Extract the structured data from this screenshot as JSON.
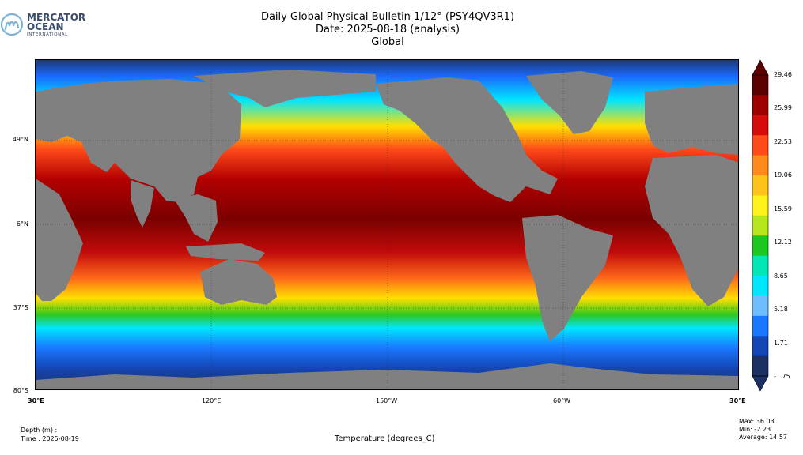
{
  "logo": {
    "line1": "MERCATOR",
    "line2": "OCEAN",
    "line3": "INTERNATIONAL",
    "icon": "mercator-ocean-logo-icon"
  },
  "title": {
    "line1": "Daily Global Physical Bulletin 1/12° (PSY4QV3R1)",
    "line2": "Date: 2025-08-18 (analysis)",
    "line3": "Global"
  },
  "map": {
    "land_color": "#808080",
    "ocean_colors": {
      "cold": "#1c3a75",
      "cool": "#1a8aff",
      "mid": "#00e5ff",
      "warm": "#ffe000",
      "hot": "#e31a1a",
      "hottest": "#7a0000"
    },
    "lat_labels": [
      "49°N",
      "6°N",
      "37°S",
      "80°S"
    ],
    "lon_labels": [
      "30°E",
      "120°E",
      "150°W",
      "60°W",
      "30°E"
    ]
  },
  "colorbar": {
    "ticks": [
      "29.46",
      "25.99",
      "22.53",
      "19.06",
      "15.59",
      "12.12",
      "8.65",
      "5.18",
      "1.71",
      "-1.75"
    ],
    "colors": [
      "#5a0000",
      "#9e0000",
      "#d40c0c",
      "#ff4a1a",
      "#ff8c1a",
      "#ffc21a",
      "#fff21a",
      "#b5e61d",
      "#1ec81e",
      "#00e6b4",
      "#00e6ff",
      "#6ebeff",
      "#1a78ff",
      "#1446b4",
      "#1c3064"
    ]
  },
  "footer": {
    "depth": "Depth (m) :",
    "time": "Time : 2025-08-19",
    "xlabel": "Temperature (degrees_C)",
    "max": "Max: 36.03",
    "min": "Min: -2.23",
    "average": "Average: 14.57"
  }
}
